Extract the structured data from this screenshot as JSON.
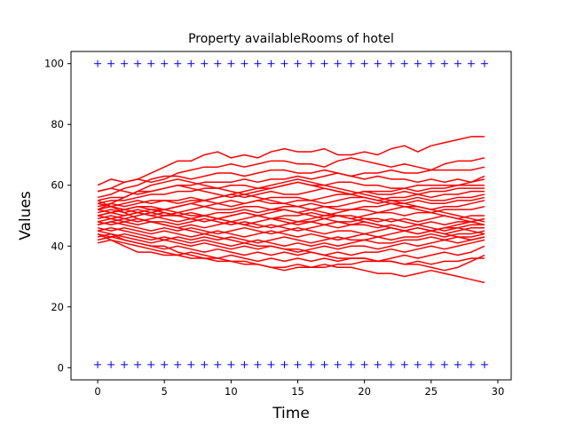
{
  "chart_data": {
    "type": "line",
    "title": "Property availableRooms of hotel",
    "xlabel": "Time",
    "ylabel": "Values",
    "xlim": [
      -2,
      31
    ],
    "ylim": [
      -4,
      104
    ],
    "xticks": [
      0,
      5,
      10,
      15,
      20,
      25,
      30
    ],
    "yticks": [
      0,
      20,
      40,
      60,
      80,
      100
    ],
    "grid": false,
    "legend": "none",
    "x": [
      0,
      1,
      2,
      3,
      4,
      5,
      6,
      7,
      8,
      9,
      10,
      11,
      12,
      13,
      14,
      15,
      16,
      17,
      18,
      19,
      20,
      21,
      22,
      23,
      24,
      25,
      26,
      27,
      28,
      29
    ],
    "line_color": "#ff0000",
    "marker_color": "#0000ff",
    "bounds": [
      {
        "marker": "+",
        "y": 100
      },
      {
        "marker": "+",
        "y": 1
      }
    ],
    "series": [
      {
        "values": [
          60,
          62,
          61,
          62,
          64,
          66,
          68,
          68,
          70,
          71,
          69,
          70,
          69,
          71,
          72,
          71,
          71,
          72,
          70,
          70,
          71,
          70,
          72,
          73,
          71,
          73,
          74,
          75,
          76,
          76
        ]
      },
      {
        "values": [
          58,
          59,
          61,
          62,
          61,
          62,
          64,
          65,
          66,
          66,
          67,
          66,
          67,
          68,
          68,
          67,
          67,
          66,
          68,
          69,
          68,
          67,
          66,
          67,
          66,
          65,
          67,
          68,
          68,
          69
        ]
      },
      {
        "values": [
          56,
          57,
          59,
          60,
          62,
          63,
          63,
          62,
          63,
          64,
          64,
          63,
          64,
          65,
          65,
          64,
          64,
          65,
          64,
          63,
          64,
          64,
          65,
          64,
          64,
          65,
          65,
          65,
          65,
          66
        ]
      },
      {
        "values": [
          55,
          56,
          56,
          58,
          58,
          59,
          60,
          60,
          61,
          61,
          61,
          62,
          61,
          62,
          62,
          63,
          62,
          63,
          64,
          63,
          62,
          63,
          62,
          62,
          61,
          62,
          61,
          62,
          61,
          62
        ]
      },
      {
        "values": [
          54,
          55,
          55,
          56,
          57,
          57,
          58,
          58,
          59,
          59,
          60,
          60,
          59,
          59,
          60,
          61,
          60,
          60,
          61,
          61,
          60,
          60,
          59,
          59,
          60,
          60,
          60,
          60,
          61,
          63
        ]
      },
      {
        "values": [
          53,
          54,
          53,
          54,
          55,
          55,
          54,
          55,
          55,
          56,
          57,
          56,
          57,
          58,
          57,
          57,
          58,
          59,
          58,
          57,
          58,
          58,
          58,
          59,
          58,
          59,
          59,
          60,
          60,
          60
        ]
      },
      {
        "values": [
          52,
          53,
          54,
          55,
          54,
          55,
          55,
          56,
          55,
          54,
          55,
          54,
          55,
          56,
          56,
          56,
          55,
          56,
          57,
          57,
          58,
          57,
          57,
          58,
          57,
          58,
          58,
          59,
          59,
          59
        ]
      },
      {
        "values": [
          52,
          51,
          52,
          53,
          53,
          52,
          53,
          54,
          53,
          54,
          53,
          54,
          55,
          54,
          54,
          55,
          55,
          54,
          55,
          56,
          56,
          55,
          56,
          56,
          57,
          56,
          57,
          57,
          58,
          58
        ]
      },
      {
        "values": [
          51,
          52,
          51,
          52,
          51,
          50,
          51,
          52,
          53,
          52,
          52,
          53,
          53,
          52,
          53,
          53,
          54,
          53,
          53,
          54,
          55,
          54,
          55,
          55,
          56,
          55,
          55,
          56,
          56,
          57
        ]
      },
      {
        "values": [
          50,
          51,
          52,
          51,
          50,
          51,
          50,
          49,
          50,
          51,
          51,
          52,
          51,
          52,
          52,
          51,
          52,
          53,
          52,
          52,
          53,
          53,
          54,
          54,
          55,
          54,
          54,
          55,
          55,
          56
        ]
      },
      {
        "values": [
          50,
          49,
          50,
          51,
          52,
          52,
          51,
          50,
          50,
          49,
          50,
          51,
          50,
          49,
          50,
          50,
          51,
          50,
          51,
          52,
          52,
          51,
          52,
          53,
          53,
          52,
          53,
          53,
          54,
          55
        ]
      },
      {
        "values": [
          49,
          50,
          49,
          48,
          49,
          50,
          50,
          49,
          48,
          49,
          48,
          47,
          48,
          49,
          49,
          48,
          49,
          50,
          50,
          49,
          50,
          51,
          51,
          50,
          51,
          51,
          52,
          52,
          52,
          53
        ]
      },
      {
        "values": [
          48,
          49,
          48,
          47,
          48,
          48,
          47,
          48,
          49,
          48,
          47,
          48,
          47,
          46,
          47,
          48,
          48,
          47,
          48,
          48,
          49,
          49,
          48,
          49,
          48,
          49,
          50,
          49,
          50,
          50
        ]
      },
      {
        "values": [
          48,
          47,
          48,
          49,
          48,
          47,
          46,
          47,
          46,
          47,
          48,
          47,
          46,
          47,
          46,
          45,
          46,
          47,
          46,
          47,
          47,
          46,
          47,
          46,
          47,
          48,
          47,
          48,
          48,
          49
        ]
      },
      {
        "values": [
          47,
          48,
          47,
          46,
          45,
          46,
          45,
          46,
          45,
          44,
          45,
          46,
          45,
          44,
          45,
          46,
          45,
          44,
          45,
          45,
          44,
          45,
          46,
          45,
          46,
          45,
          46,
          46,
          47,
          47
        ]
      },
      {
        "values": [
          46,
          45,
          46,
          45,
          44,
          45,
          44,
          43,
          44,
          45,
          44,
          43,
          44,
          45,
          44,
          43,
          44,
          43,
          42,
          43,
          44,
          43,
          44,
          45,
          44,
          45,
          44,
          45,
          46,
          46
        ]
      },
      {
        "values": [
          45,
          46,
          45,
          44,
          43,
          42,
          43,
          42,
          43,
          42,
          43,
          42,
          41,
          42,
          43,
          42,
          41,
          42,
          43,
          42,
          42,
          43,
          42,
          43,
          43,
          44,
          43,
          44,
          44,
          45
        ]
      },
      {
        "values": [
          44,
          43,
          44,
          43,
          42,
          43,
          42,
          41,
          42,
          41,
          40,
          41,
          42,
          41,
          40,
          41,
          40,
          41,
          40,
          41,
          42,
          41,
          41,
          42,
          42,
          43,
          42,
          43,
          43,
          44
        ]
      },
      {
        "values": [
          43,
          44,
          43,
          42,
          41,
          42,
          41,
          40,
          41,
          40,
          39,
          40,
          39,
          40,
          39,
          38,
          39,
          40,
          39,
          40,
          40,
          39,
          40,
          41,
          40,
          41,
          42,
          41,
          42,
          43
        ]
      },
      {
        "values": [
          42,
          43,
          42,
          41,
          40,
          39,
          40,
          39,
          38,
          39,
          38,
          37,
          38,
          37,
          38,
          37,
          38,
          37,
          38,
          37,
          38,
          38,
          39,
          38,
          39,
          40,
          39,
          40,
          41,
          42
        ]
      },
      {
        "values": [
          41,
          42,
          41,
          40,
          39,
          38,
          37,
          38,
          37,
          36,
          37,
          36,
          35,
          36,
          35,
          36,
          35,
          36,
          35,
          36,
          36,
          35,
          36,
          37,
          36,
          37,
          38,
          37,
          38,
          40
        ]
      },
      {
        "values": [
          44,
          42,
          40,
          38,
          38,
          37,
          37,
          36,
          36,
          35,
          35,
          34,
          34,
          33,
          33,
          34,
          33,
          33,
          34,
          34,
          35,
          35,
          35,
          34,
          35,
          34,
          35,
          35,
          36,
          36
        ]
      },
      {
        "values": [
          45,
          44,
          42,
          41,
          40,
          40,
          38,
          37,
          36,
          36,
          35,
          35,
          34,
          33,
          32,
          33,
          33,
          34,
          33,
          33,
          32,
          31,
          31,
          30,
          31,
          32,
          31,
          30,
          29,
          28
        ]
      },
      {
        "values": [
          55,
          53,
          51,
          49,
          48,
          47,
          46,
          45,
          44,
          43,
          42,
          41,
          40,
          40,
          39,
          39,
          38,
          37,
          36,
          36,
          36,
          35,
          35,
          34,
          34,
          33,
          32,
          33,
          35,
          37
        ]
      },
      {
        "values": [
          50,
          51,
          50,
          51,
          50,
          49,
          48,
          49,
          50,
          49,
          48,
          49,
          50,
          49,
          48,
          47,
          48,
          49,
          50,
          50,
          49,
          48,
          49,
          48,
          47,
          46,
          45,
          46,
          45,
          44
        ]
      },
      {
        "values": [
          54,
          53,
          52,
          53,
          52,
          51,
          50,
          51,
          50,
          49,
          50,
          51,
          50,
          51,
          52,
          51,
          50,
          49,
          48,
          47,
          48,
          47,
          46,
          45,
          46,
          45,
          44,
          43,
          42,
          43
        ]
      },
      {
        "values": [
          58,
          59,
          58,
          57,
          58,
          59,
          60,
          59,
          58,
          57,
          56,
          57,
          58,
          59,
          60,
          61,
          60,
          59,
          58,
          57,
          56,
          55,
          54,
          53,
          52,
          51,
          50,
          49,
          48,
          47
        ]
      },
      {
        "values": [
          47,
          48,
          49,
          50,
          51,
          52,
          53,
          54,
          55,
          56,
          57,
          58,
          59,
          60,
          61,
          62,
          61,
          60,
          59,
          58,
          57,
          56,
          55,
          54,
          53,
          52,
          51,
          50,
          49,
          48
        ]
      },
      {
        "values": [
          52,
          54,
          56,
          58,
          60,
          61,
          62,
          61,
          60,
          59,
          58,
          57,
          56,
          55,
          54,
          53,
          52,
          51,
          50,
          49,
          48,
          47,
          46,
          45,
          44,
          45,
          46,
          47,
          48,
          49
        ]
      }
    ]
  }
}
